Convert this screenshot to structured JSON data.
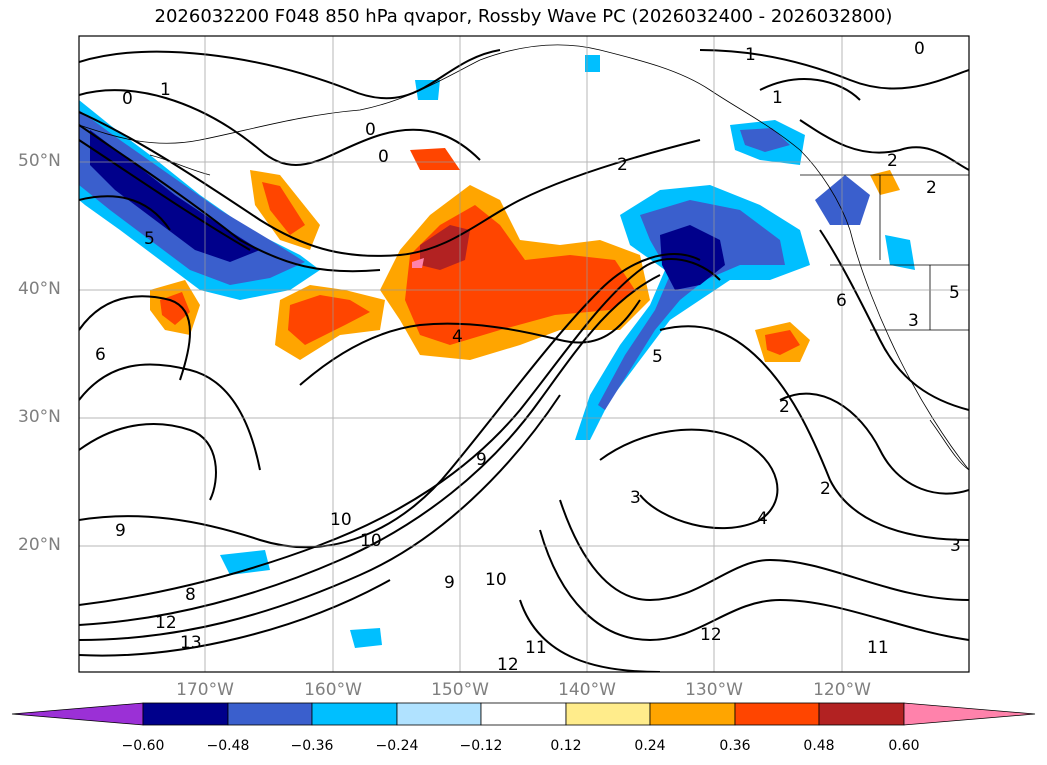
{
  "title": "2026032200 F048 850 hPa qvapor, Rossby Wave PC (2026032400 - 2026032800)",
  "lat_labels": [
    "50°N",
    "40°N",
    "30°N",
    "20°N"
  ],
  "lon_labels": [
    "170°W",
    "160°W",
    "150°W",
    "140°W",
    "130°W",
    "120°W"
  ],
  "colorbar": {
    "ticks": [
      "−0.60",
      "−0.48",
      "−0.36",
      "−0.24",
      "−0.12",
      "0.12",
      "0.24",
      "0.36",
      "0.48",
      "0.60"
    ],
    "colors": [
      "#9b30d6",
      "#00008b",
      "#3a5fcd",
      "#00bfff",
      "#b0e2ff",
      "#ffffff",
      "#ffec8b",
      "#ffa500",
      "#ff4500",
      "#b22222",
      "#ff82ab"
    ]
  },
  "contour_labels": [
    "1",
    "0",
    "0",
    "0",
    "0",
    "1",
    "1",
    "2",
    "2",
    "2",
    "5",
    "6",
    "4",
    "3",
    "5",
    "2",
    "3",
    "4",
    "9",
    "9",
    "10",
    "8",
    "10",
    "9",
    "10",
    "12",
    "13",
    "12",
    "11",
    "12",
    "11",
    "3",
    "2",
    "5",
    "6"
  ]
}
